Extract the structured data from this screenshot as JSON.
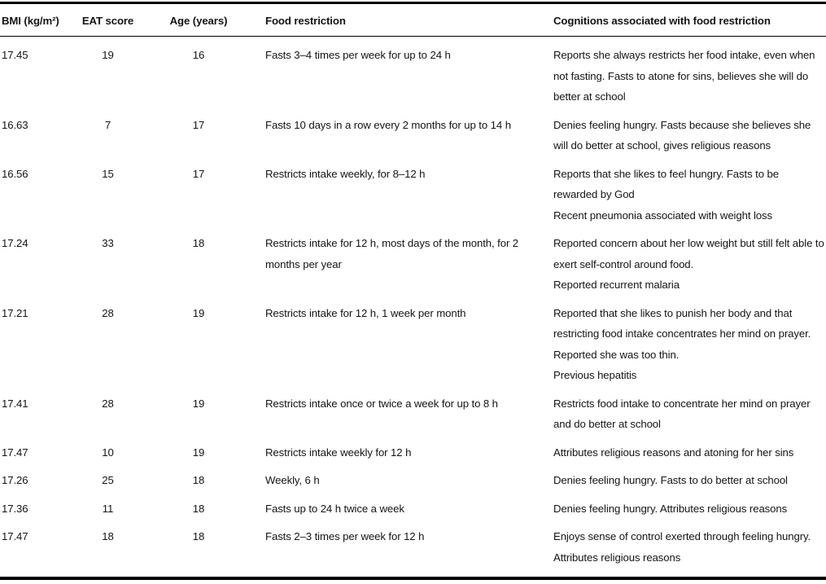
{
  "table": {
    "columns": [
      {
        "label": "BMI (kg/m²)"
      },
      {
        "label": "EAT score"
      },
      {
        "label": "Age (years)"
      },
      {
        "label": "Food restriction"
      },
      {
        "label": "Cognitions associated with food restriction"
      }
    ],
    "rows": [
      {
        "bmi": "17.45",
        "eat_score": "19",
        "age": "16",
        "food_restriction": "Fasts 3–4 times per week for up to 24 h",
        "cognitions": [
          "Reports she always restricts her food intake, even when not fasting. Fasts to atone for sins, believes she will do better at school"
        ]
      },
      {
        "bmi": "16.63",
        "eat_score": "7",
        "age": "17",
        "food_restriction": "Fasts 10 days in a row every 2 months for up to 14 h",
        "cognitions": [
          "Denies feeling hungry. Fasts because she believes she will do better at school, gives religious reasons"
        ]
      },
      {
        "bmi": "16.56",
        "eat_score": "15",
        "age": "17",
        "food_restriction": "Restricts intake weekly, for 8–12 h",
        "cognitions": [
          "Reports that she likes to feel hungry. Fasts to be rewarded by God",
          "Recent pneumonia associated with weight loss"
        ]
      },
      {
        "bmi": "17.24",
        "eat_score": "33",
        "age": "18",
        "food_restriction": "Restricts intake for 12 h, most days of the month, for 2 months per year",
        "cognitions": [
          "Reported concern about her low weight but still felt able to exert self-control around food.",
          "Reported recurrent malaria"
        ]
      },
      {
        "bmi": "17.21",
        "eat_score": "28",
        "age": "19",
        "food_restriction": "Restricts intake for 12 h, 1 week per month",
        "cognitions": [
          "Reported that she likes to punish her body and that restricting food intake concentrates her mind on prayer. Reported she was too thin.",
          "Previous hepatitis"
        ]
      },
      {
        "bmi": "17.41",
        "eat_score": "28",
        "age": "19",
        "food_restriction": "Restricts intake once or twice a week for up to 8 h",
        "cognitions": [
          "Restricts food intake to concentrate her mind on prayer and do better at school"
        ]
      },
      {
        "bmi": "17.47",
        "eat_score": "10",
        "age": "19",
        "food_restriction": "Restricts intake weekly for 12 h",
        "cognitions": [
          "Attributes religious reasons and atoning for her sins"
        ]
      },
      {
        "bmi": "17.26",
        "eat_score": "25",
        "age": "18",
        "food_restriction": "Weekly, 6 h",
        "cognitions": [
          "Denies feeling hungry. Fasts to do better at school"
        ]
      },
      {
        "bmi": "17.36",
        "eat_score": "11",
        "age": "18",
        "food_restriction": "Fasts up to 24 h twice a week",
        "cognitions": [
          "Denies feeling hungry. Attributes religious reasons"
        ]
      },
      {
        "bmi": "17.47",
        "eat_score": "18",
        "age": "18",
        "food_restriction": "Fasts 2–3 times per week for 12 h",
        "cognitions": [
          "Enjoys sense of control exerted through feeling hungry. Attributes religious reasons"
        ]
      }
    ]
  }
}
